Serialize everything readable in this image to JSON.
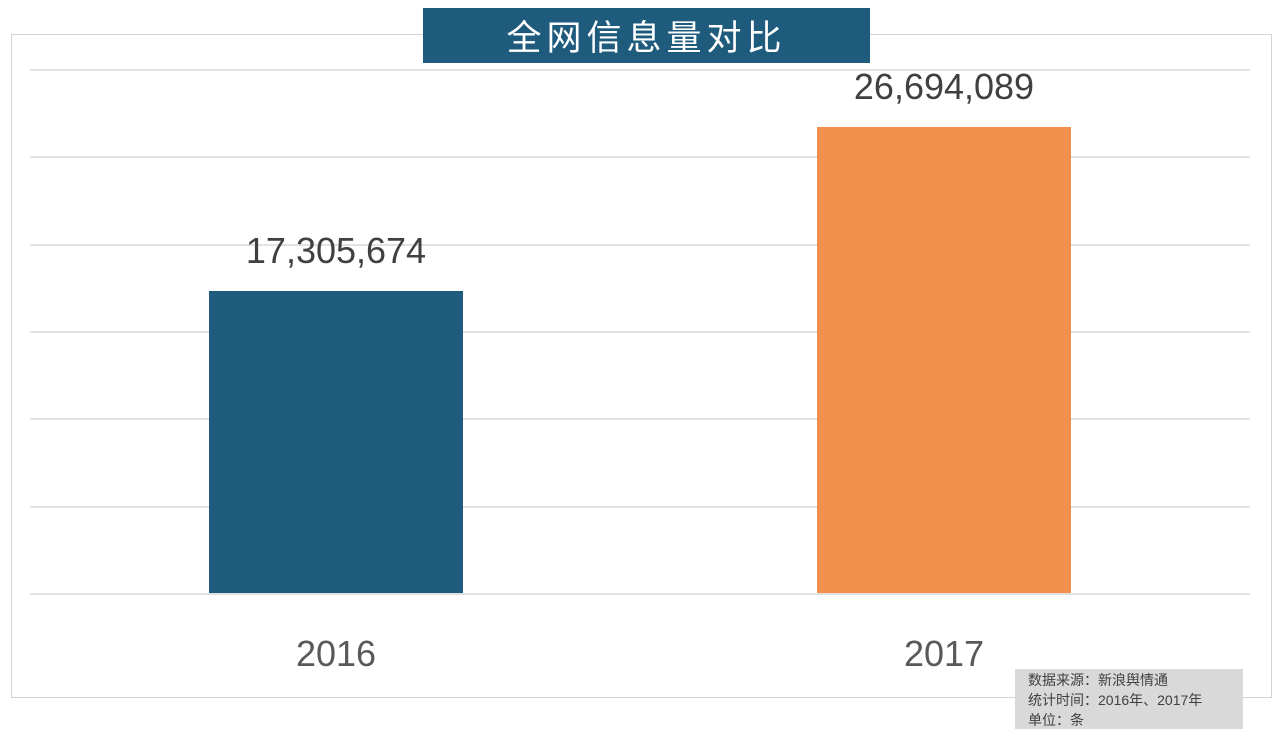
{
  "chart_data": {
    "type": "bar",
    "title": "全网信息量对比",
    "categories": [
      "2016",
      "2017"
    ],
    "values": [
      17305674,
      26694089
    ],
    "value_labels": [
      "17,305,674",
      "26,694,089"
    ],
    "bar_colors": [
      "#1e5b7c",
      "#f0904c"
    ],
    "xlabel": "",
    "ylabel": "",
    "ylim": [
      0,
      30000000
    ],
    "gridline_step": 5000000,
    "grid": true,
    "legend_position": "none"
  },
  "source_note": {
    "lines": [
      "数据来源：新浪舆情通",
      "统计时间：2016年、2017年",
      "单位：条"
    ]
  },
  "colors": {
    "title_banner_bg": "#1e5b7c",
    "bar_2016": "#1e5b7c",
    "bar_2017": "#f0904c",
    "gridline": "#e2e2e2",
    "value_text": "#404040",
    "category_text": "#595959",
    "note_bg": "#d9d9d9",
    "note_text": "#404040"
  }
}
